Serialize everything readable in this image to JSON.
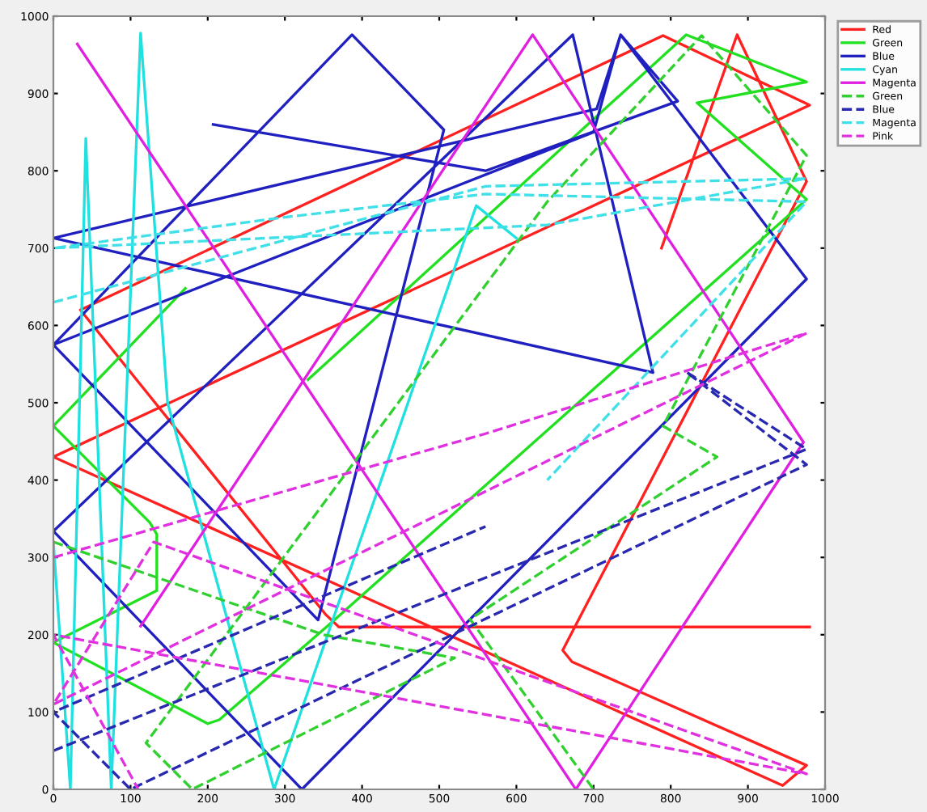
{
  "chart_data": {
    "type": "line",
    "xlim": [
      0,
      1000
    ],
    "ylim": [
      0,
      1000
    ],
    "xticks": [
      0,
      100,
      200,
      300,
      400,
      500,
      600,
      700,
      800,
      900,
      1000
    ],
    "yticks": [
      0,
      100,
      200,
      300,
      400,
      500,
      600,
      700,
      800,
      900,
      1000
    ],
    "grid": false,
    "legend": "top right",
    "marker": "none",
    "series": [
      {
        "name": "Red",
        "color": "#ff2020",
        "line_style": "solid",
        "x": [
          788,
          886,
          976,
          660,
          672,
          976,
          945,
          0,
          980,
          790,
          35,
          353,
          370,
          980
        ],
        "values": [
          700,
          976,
          786,
          180,
          165,
          31,
          5,
          430,
          885,
          975,
          620,
          226,
          210,
          210
        ]
      },
      {
        "name": "Green",
        "color": "#20e020",
        "line_style": "solid",
        "x": [
          171,
          0,
          125,
          134,
          134,
          0,
          200,
          215,
          355,
          976,
          834,
          976,
          820,
          330
        ],
        "values": [
          648,
          470,
          345,
          330,
          257,
          190,
          85,
          90,
          211,
          763,
          888,
          915,
          976,
          530
        ]
      },
      {
        "name": "Blue",
        "color": "#2020c0",
        "line_style": "solid",
        "x": [
          207,
          560,
          809,
          735,
          704,
          0,
          777,
          673,
          0,
          322,
          976,
          735,
          700,
          0,
          387,
          506,
          343,
          0
        ],
        "values": [
          860,
          800,
          890,
          976,
          880,
          713,
          539,
          976,
          334,
          0,
          660,
          976,
          850,
          575,
          976,
          853,
          219,
          575
        ]
      },
      {
        "name": "Cyan",
        "color": "#20e0e0",
        "line_style": "solid",
        "x": [
          0,
          22,
          42,
          75,
          113,
          148,
          286,
          548,
          600
        ],
        "values": [
          320,
          0,
          842,
          0,
          978,
          500,
          0,
          755,
          713
        ]
      },
      {
        "name": "Magenta",
        "color": "#e020e0",
        "line_style": "solid",
        "x": [
          31,
          677,
          972,
          621,
          113
        ],
        "values": [
          964,
          0,
          449,
          976,
          211
        ]
      },
      {
        "name": "Green",
        "color": "#30d030",
        "line_style": "dashed",
        "x": [
          0,
          350,
          520,
          180,
          120,
          640,
          840,
          976,
          790,
          860,
          540,
          700
        ],
        "values": [
          320,
          200,
          170,
          0,
          60,
          760,
          975,
          820,
          470,
          430,
          220,
          0
        ]
      },
      {
        "name": "Blue",
        "color": "#2828b0",
        "line_style": "dashed",
        "x": [
          0,
          976,
          820,
          976,
          100,
          0,
          560
        ],
        "values": [
          50,
          440,
          540,
          420,
          0,
          100,
          340
        ]
      },
      {
        "name": "Magenta",
        "color": "#40e0e8",
        "line_style": "dashed",
        "x": [
          0,
          560,
          976,
          640,
          0,
          300,
          560,
          976,
          640
        ],
        "values": [
          630,
          780,
          790,
          730,
          700,
          740,
          770,
          760,
          400
        ]
      },
      {
        "name": "Pink",
        "color": "#e030e0",
        "line_style": "dashed",
        "x": [
          0,
          560,
          976,
          0,
          130,
          976,
          0,
          110
        ],
        "values": [
          300,
          460,
          590,
          110,
          320,
          20,
          200,
          0
        ]
      }
    ]
  }
}
